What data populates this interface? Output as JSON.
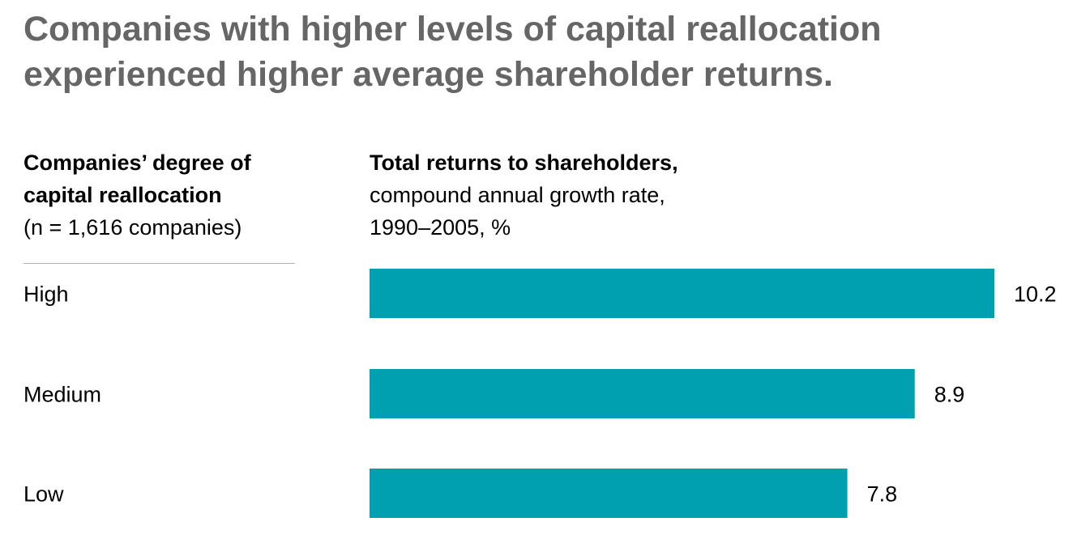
{
  "title_line1": "Companies with higher levels of capital reallocation",
  "title_line2": "experienced higher average shareholder returns.",
  "left_header": {
    "line1": "Companies’ degree of",
    "line2": "capital reallocation",
    "note": "(n = 1,616 companies)"
  },
  "right_header": {
    "line1": "Total returns to shareholders,",
    "line2": "compound annual growth rate,",
    "line3": "1990–2005, %"
  },
  "colors": {
    "bar": "#00A0B0",
    "title": "#666666",
    "rule": "#B3B3B3"
  },
  "chart_data": {
    "type": "bar",
    "orientation": "horizontal",
    "categories": [
      "High",
      "Medium",
      "Low"
    ],
    "values": [
      10.2,
      8.9,
      7.8
    ],
    "value_labels": [
      "10.2",
      "8.9",
      "7.8"
    ],
    "grid": false,
    "legend": "none"
  }
}
